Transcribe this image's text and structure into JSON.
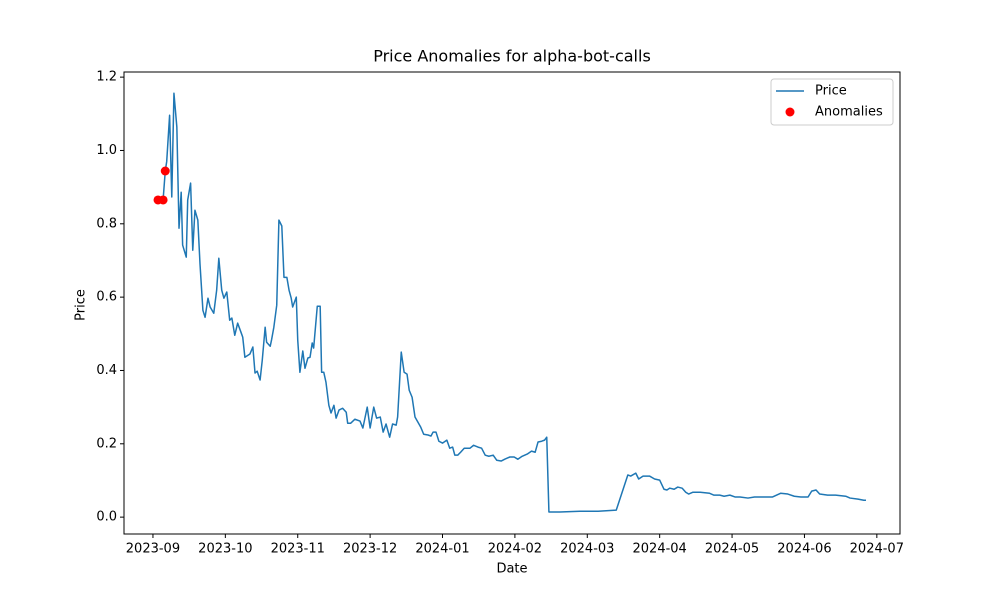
{
  "chart_data": {
    "type": "line",
    "title": "Price Anomalies for alpha-bot-calls",
    "xlabel": "Date",
    "ylabel": "Price",
    "xlim": [
      -0.4,
      10.32
    ],
    "ylim": [
      -0.046,
      1.214
    ],
    "xticks": [
      {
        "value": 0,
        "label": "2023-09"
      },
      {
        "value": 1,
        "label": "2023-10"
      },
      {
        "value": 2,
        "label": "2023-11"
      },
      {
        "value": 3,
        "label": "2023-12"
      },
      {
        "value": 4,
        "label": "2024-01"
      },
      {
        "value": 5,
        "label": "2024-02"
      },
      {
        "value": 6,
        "label": "2024-03"
      },
      {
        "value": 7,
        "label": "2024-04"
      },
      {
        "value": 8,
        "label": "2024-05"
      },
      {
        "value": 9,
        "label": "2024-06"
      },
      {
        "value": 10,
        "label": "2024-07"
      }
    ],
    "yticks": [
      {
        "value": 0,
        "label": "0.0"
      },
      0.2,
      0.4,
      0.6,
      0.8,
      {
        "value": 1,
        "label": "1.0"
      },
      1.2
    ],
    "legend": "upper right",
    "series": [
      {
        "name": "Price",
        "type": "line",
        "color": "#1f77b4",
        "x": [
          0.06,
          0.14,
          0.17,
          0.19,
          0.23,
          0.26,
          0.29,
          0.33,
          0.36,
          0.39,
          0.41,
          0.46,
          0.48,
          0.52,
          0.55,
          0.58,
          0.62,
          0.65,
          0.69,
          0.72,
          0.76,
          0.79,
          0.84,
          0.88,
          0.91,
          0.95,
          0.98,
          1.02,
          1.06,
          1.09,
          1.13,
          1.17,
          1.22,
          1.24,
          1.27,
          1.34,
          1.38,
          1.41,
          1.44,
          1.48,
          1.51,
          1.55,
          1.57,
          1.62,
          1.64,
          1.67,
          1.71,
          1.74,
          1.78,
          1.81,
          1.85,
          1.88,
          1.91,
          1.93,
          1.98,
          2.0,
          2.03,
          2.07,
          2.1,
          2.14,
          2.17,
          2.2,
          2.22,
          2.27,
          2.31,
          2.33,
          2.36,
          2.39,
          2.43,
          2.46,
          2.5,
          2.53,
          2.57,
          2.62,
          2.67,
          2.69,
          2.73,
          2.79,
          2.86,
          2.9,
          2.96,
          3.0,
          3.05,
          3.09,
          3.14,
          3.18,
          3.22,
          3.27,
          3.31,
          3.36,
          3.38,
          3.43,
          3.47,
          3.51,
          3.54,
          3.58,
          3.62,
          3.66,
          3.7,
          3.74,
          3.8,
          3.84,
          3.87,
          3.91,
          3.95,
          4.0,
          4.06,
          4.1,
          4.14,
          4.17,
          4.21,
          4.25,
          4.3,
          4.34,
          4.38,
          4.43,
          4.49,
          4.54,
          4.59,
          4.64,
          4.7,
          4.75,
          4.81,
          4.86,
          4.93,
          4.99,
          5.04,
          5.1,
          5.17,
          5.23,
          5.28,
          5.32,
          5.37,
          5.41,
          5.44,
          5.47,
          5.62,
          5.9,
          6.15,
          6.4,
          6.56,
          6.6,
          6.67,
          6.71,
          6.77,
          6.86,
          6.93,
          7.0,
          7.06,
          7.1,
          7.14,
          7.2,
          7.25,
          7.31,
          7.36,
          7.4,
          7.46,
          7.56,
          7.69,
          7.75,
          7.83,
          7.89,
          7.97,
          8.04,
          8.11,
          8.22,
          8.31,
          8.45,
          8.56,
          8.67,
          8.77,
          8.86,
          8.95,
          9.05,
          9.1,
          9.16,
          9.21,
          9.32,
          9.43,
          9.57,
          9.63,
          9.74,
          9.82,
          9.85
        ],
        "values": [
          0.865,
          0.865,
          0.944,
          0.97,
          1.096,
          0.873,
          1.156,
          1.064,
          0.788,
          0.886,
          0.742,
          0.709,
          0.865,
          0.911,
          0.728,
          0.837,
          0.81,
          0.69,
          0.564,
          0.545,
          0.597,
          0.573,
          0.556,
          0.619,
          0.706,
          0.619,
          0.597,
          0.614,
          0.537,
          0.543,
          0.496,
          0.529,
          0.502,
          0.491,
          0.436,
          0.445,
          0.464,
          0.393,
          0.398,
          0.374,
          0.428,
          0.518,
          0.477,
          0.466,
          0.485,
          0.518,
          0.578,
          0.81,
          0.794,
          0.654,
          0.654,
          0.619,
          0.597,
          0.573,
          0.6,
          0.483,
          0.395,
          0.453,
          0.406,
          0.434,
          0.436,
          0.475,
          0.461,
          0.575,
          0.575,
          0.395,
          0.395,
          0.368,
          0.305,
          0.284,
          0.305,
          0.27,
          0.292,
          0.297,
          0.286,
          0.256,
          0.256,
          0.267,
          0.262,
          0.243,
          0.3,
          0.243,
          0.3,
          0.27,
          0.273,
          0.232,
          0.254,
          0.218,
          0.254,
          0.251,
          0.273,
          0.45,
          0.395,
          0.39,
          0.346,
          0.327,
          0.273,
          0.259,
          0.245,
          0.226,
          0.224,
          0.221,
          0.232,
          0.232,
          0.207,
          0.202,
          0.21,
          0.188,
          0.191,
          0.169,
          0.169,
          0.177,
          0.188,
          0.188,
          0.188,
          0.196,
          0.191,
          0.188,
          0.169,
          0.166,
          0.169,
          0.155,
          0.153,
          0.158,
          0.164,
          0.164,
          0.158,
          0.166,
          0.172,
          0.18,
          0.177,
          0.205,
          0.207,
          0.21,
          0.218,
          0.014,
          0.014,
          0.016,
          0.016,
          0.019,
          0.115,
          0.112,
          0.12,
          0.104,
          0.112,
          0.112,
          0.104,
          0.101,
          0.076,
          0.074,
          0.079,
          0.076,
          0.082,
          0.079,
          0.068,
          0.063,
          0.068,
          0.068,
          0.065,
          0.06,
          0.06,
          0.057,
          0.06,
          0.055,
          0.055,
          0.052,
          0.055,
          0.055,
          0.055,
          0.065,
          0.063,
          0.057,
          0.055,
          0.055,
          0.071,
          0.074,
          0.063,
          0.06,
          0.06,
          0.057,
          0.052,
          0.049,
          0.046,
          0.046
        ]
      },
      {
        "name": "Anomalies",
        "type": "scatter",
        "color": "#ff0000",
        "x": [
          0.07,
          0.14,
          0.17
        ],
        "values": [
          0.865,
          0.865,
          0.944
        ]
      }
    ]
  }
}
